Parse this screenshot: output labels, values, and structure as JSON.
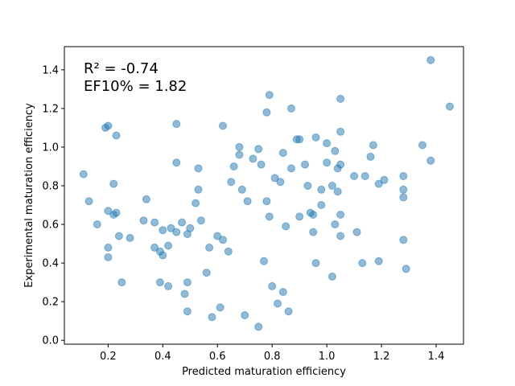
{
  "chart_data": {
    "type": "scatter",
    "xlabel": "Predicted maturation efficiency",
    "ylabel": "Experimental maturation efficiency",
    "xlim": [
      0.04,
      1.5
    ],
    "ylim": [
      -0.02,
      1.52
    ],
    "xticks": [
      0.2,
      0.4,
      0.6,
      0.8,
      1.0,
      1.2,
      1.4
    ],
    "xtick_labels": [
      "0.2",
      "0.4",
      "0.6",
      "0.8",
      "1.0",
      "1.2",
      "1.4"
    ],
    "yticks": [
      0.0,
      0.2,
      0.4,
      0.6,
      0.8,
      1.0,
      1.2,
      1.4
    ],
    "ytick_labels": [
      "0.0",
      "0.2",
      "0.4",
      "0.6",
      "0.8",
      "1.0",
      "1.2",
      "1.4"
    ],
    "grid": false,
    "marker_color": "#1f77b4",
    "marker_alpha": 0.5,
    "annotations": [
      "R² = -0.74",
      "EF10% = 1.82"
    ],
    "points": [
      [
        0.11,
        0.86
      ],
      [
        0.13,
        0.72
      ],
      [
        0.16,
        0.6
      ],
      [
        0.19,
        1.1
      ],
      [
        0.2,
        1.11
      ],
      [
        0.2,
        0.67
      ],
      [
        0.2,
        0.48
      ],
      [
        0.2,
        0.43
      ],
      [
        0.22,
        0.65
      ],
      [
        0.22,
        0.81
      ],
      [
        0.23,
        0.66
      ],
      [
        0.23,
        1.06
      ],
      [
        0.24,
        0.54
      ],
      [
        0.25,
        0.3
      ],
      [
        0.28,
        0.53
      ],
      [
        0.33,
        0.62
      ],
      [
        0.34,
        0.73
      ],
      [
        0.37,
        0.61
      ],
      [
        0.37,
        0.48
      ],
      [
        0.39,
        0.3
      ],
      [
        0.39,
        0.46
      ],
      [
        0.4,
        0.44
      ],
      [
        0.4,
        0.57
      ],
      [
        0.42,
        0.49
      ],
      [
        0.42,
        0.28
      ],
      [
        0.43,
        0.58
      ],
      [
        0.45,
        1.12
      ],
      [
        0.45,
        0.56
      ],
      [
        0.45,
        0.92
      ],
      [
        0.47,
        0.61
      ],
      [
        0.48,
        0.24
      ],
      [
        0.49,
        0.55
      ],
      [
        0.49,
        0.3
      ],
      [
        0.49,
        0.15
      ],
      [
        0.5,
        0.58
      ],
      [
        0.52,
        0.71
      ],
      [
        0.53,
        0.89
      ],
      [
        0.53,
        0.78
      ],
      [
        0.54,
        0.62
      ],
      [
        0.56,
        0.35
      ],
      [
        0.57,
        0.48
      ],
      [
        0.58,
        0.12
      ],
      [
        0.6,
        0.54
      ],
      [
        0.61,
        0.17
      ],
      [
        0.62,
        1.11
      ],
      [
        0.62,
        0.52
      ],
      [
        0.64,
        0.46
      ],
      [
        0.65,
        0.82
      ],
      [
        0.66,
        0.9
      ],
      [
        0.68,
        1.0
      ],
      [
        0.68,
        0.96
      ],
      [
        0.69,
        0.78
      ],
      [
        0.7,
        0.13
      ],
      [
        0.71,
        0.72
      ],
      [
        0.73,
        0.94
      ],
      [
        0.75,
        0.99
      ],
      [
        0.76,
        0.91
      ],
      [
        0.75,
        0.07
      ],
      [
        0.77,
        0.41
      ],
      [
        0.78,
        1.18
      ],
      [
        0.78,
        0.72
      ],
      [
        0.79,
        1.27
      ],
      [
        0.79,
        0.64
      ],
      [
        0.8,
        0.28
      ],
      [
        0.81,
        0.84
      ],
      [
        0.82,
        0.19
      ],
      [
        0.83,
        0.82
      ],
      [
        0.84,
        0.25
      ],
      [
        0.84,
        0.97
      ],
      [
        0.85,
        0.59
      ],
      [
        0.86,
        0.15
      ],
      [
        0.87,
        1.2
      ],
      [
        0.87,
        0.89
      ],
      [
        0.89,
        1.04
      ],
      [
        0.9,
        1.04
      ],
      [
        0.9,
        0.64
      ],
      [
        0.92,
        0.91
      ],
      [
        0.93,
        0.8
      ],
      [
        0.94,
        0.66
      ],
      [
        0.95,
        0.56
      ],
      [
        0.95,
        0.65
      ],
      [
        0.96,
        1.05
      ],
      [
        0.96,
        0.4
      ],
      [
        0.98,
        0.78
      ],
      [
        0.98,
        0.7
      ],
      [
        1.0,
        1.02
      ],
      [
        1.0,
        0.92
      ],
      [
        1.02,
        0.8
      ],
      [
        1.02,
        0.33
      ],
      [
        1.03,
        0.6
      ],
      [
        1.03,
        0.98
      ],
      [
        1.04,
        0.77
      ],
      [
        1.04,
        0.89
      ],
      [
        1.05,
        1.25
      ],
      [
        1.05,
        1.08
      ],
      [
        1.05,
        0.91
      ],
      [
        1.05,
        0.65
      ],
      [
        1.05,
        0.54
      ],
      [
        1.1,
        0.85
      ],
      [
        1.11,
        0.56
      ],
      [
        1.13,
        0.4
      ],
      [
        1.14,
        0.85
      ],
      [
        1.16,
        0.95
      ],
      [
        1.17,
        1.01
      ],
      [
        1.19,
        0.81
      ],
      [
        1.19,
        0.41
      ],
      [
        1.21,
        0.83
      ],
      [
        1.28,
        0.85
      ],
      [
        1.28,
        0.78
      ],
      [
        1.28,
        0.74
      ],
      [
        1.28,
        0.52
      ],
      [
        1.29,
        0.37
      ],
      [
        1.35,
        1.01
      ],
      [
        1.38,
        1.45
      ],
      [
        1.38,
        0.93
      ],
      [
        1.45,
        1.21
      ]
    ]
  }
}
